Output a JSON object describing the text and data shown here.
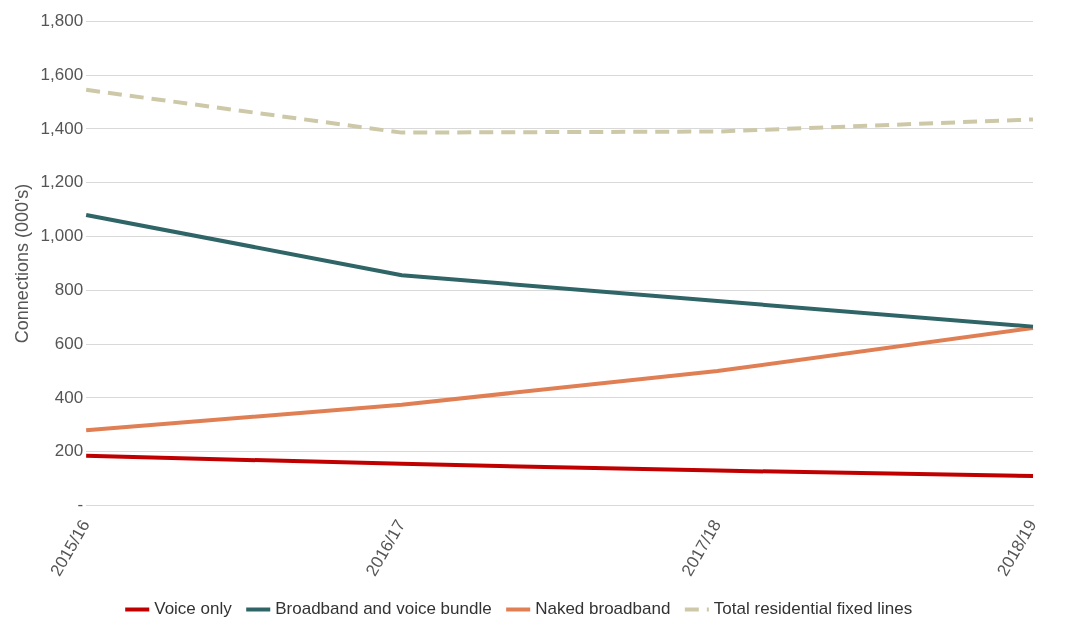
{
  "chart_data": {
    "type": "line",
    "ylabel": "Connections (000's)",
    "categories": [
      "2015/16",
      "2016/17",
      "2017/18",
      "2018/19"
    ],
    "series": [
      {
        "name": "Voice only",
        "color": "#c00000",
        "values": [
          185,
          155,
          130,
          110
        ]
      },
      {
        "name": "Broadband and voice bundle",
        "color": "#2f6566",
        "values": [
          1080,
          856,
          760,
          665
        ]
      },
      {
        "name": "Naked broadband",
        "color": "#e07f54",
        "values": [
          280,
          375,
          500,
          660
        ]
      },
      {
        "name": "Total residential fixed lines",
        "color": "#cdc9a8",
        "values": [
          1545,
          1386,
          1390,
          1435
        ],
        "line_style": "dashed"
      }
    ],
    "ylim": [
      0,
      1800
    ],
    "yticks": [
      {
        "value": 0,
        "label": "-"
      },
      200,
      400,
      600,
      800,
      {
        "value": 1000,
        "label": "1,000"
      },
      {
        "value": 1200,
        "label": "1,200"
      },
      {
        "value": 1400,
        "label": "1,400"
      },
      {
        "value": 1600,
        "label": "1,600"
      },
      {
        "value": 1800,
        "label": "1,800"
      }
    ],
    "grid": "y",
    "legend": "bottom",
    "marker": "none",
    "line_style": "solid"
  }
}
